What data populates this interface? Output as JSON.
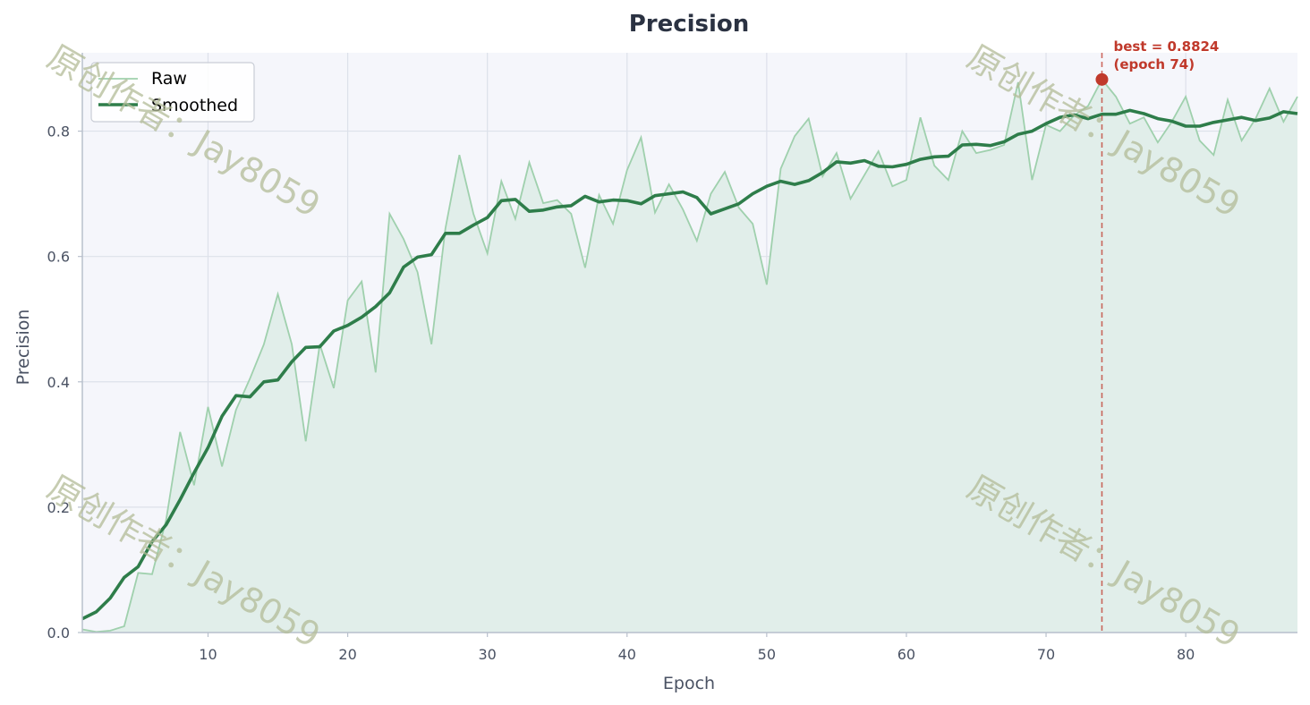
{
  "chart_data": {
    "type": "line",
    "title": "Precision",
    "xlabel": "Epoch",
    "ylabel": "Precision",
    "xlim": [
      1,
      88
    ],
    "ylim": [
      0,
      0.925
    ],
    "xticks": [
      10,
      20,
      30,
      40,
      50,
      60,
      70,
      80
    ],
    "yticks": [
      0.0,
      0.2,
      0.4,
      0.6,
      0.8
    ],
    "grid": true,
    "legend": "top-left",
    "x": [
      1,
      2,
      3,
      4,
      5,
      6,
      7,
      8,
      9,
      10,
      11,
      12,
      13,
      14,
      15,
      16,
      17,
      18,
      19,
      20,
      21,
      22,
      23,
      24,
      25,
      26,
      27,
      28,
      29,
      30,
      31,
      32,
      33,
      34,
      35,
      36,
      37,
      38,
      39,
      40,
      41,
      42,
      43,
      44,
      45,
      46,
      47,
      48,
      49,
      50,
      51,
      52,
      53,
      54,
      55,
      56,
      57,
      58,
      59,
      60,
      61,
      62,
      63,
      64,
      65,
      66,
      67,
      68,
      69,
      70,
      71,
      72,
      73,
      74,
      75,
      76,
      77,
      78,
      79,
      80,
      81,
      82,
      83,
      84,
      85,
      86,
      87,
      88
    ],
    "series": [
      {
        "name": "Raw",
        "values": [
          0.005,
          0.001,
          0.003,
          0.01,
          0.095,
          0.093,
          0.18,
          0.32,
          0.235,
          0.36,
          0.265,
          0.355,
          0.405,
          0.46,
          0.54,
          0.46,
          0.305,
          0.46,
          0.39,
          0.53,
          0.56,
          0.415,
          0.668,
          0.628,
          0.575,
          0.46,
          0.645,
          0.762,
          0.668,
          0.605,
          0.72,
          0.66,
          0.75,
          0.685,
          0.69,
          0.668,
          0.582,
          0.698,
          0.652,
          0.738,
          0.79,
          0.67,
          0.715,
          0.675,
          0.625,
          0.7,
          0.735,
          0.678,
          0.652,
          0.555,
          0.74,
          0.792,
          0.82,
          0.728,
          0.765,
          0.692,
          0.73,
          0.768,
          0.712,
          0.722,
          0.822,
          0.745,
          0.722,
          0.8,
          0.765,
          0.77,
          0.778,
          0.878,
          0.722,
          0.81,
          0.8,
          0.825,
          0.84,
          0.8824,
          0.855,
          0.812,
          0.822,
          0.782,
          0.815,
          0.855,
          0.785,
          0.762,
          0.85,
          0.785,
          0.82,
          0.868,
          0.815,
          0.855
        ],
        "color": "#9fd0ad"
      },
      {
        "name": "Smoothed",
        "values": [
          0.022,
          0.033,
          0.055,
          0.088,
          0.105,
          0.145,
          0.172,
          0.212,
          0.255,
          0.295,
          0.345,
          0.378,
          0.376,
          0.4,
          0.403,
          0.432,
          0.455,
          0.456,
          0.481,
          0.49,
          0.503,
          0.52,
          0.542,
          0.583,
          0.599,
          0.603,
          0.637,
          0.637,
          0.65,
          0.662,
          0.689,
          0.691,
          0.672,
          0.674,
          0.679,
          0.681,
          0.696,
          0.687,
          0.69,
          0.689,
          0.684,
          0.697,
          0.7,
          0.703,
          0.694,
          0.668,
          0.676,
          0.684,
          0.7,
          0.712,
          0.72,
          0.715,
          0.721,
          0.734,
          0.751,
          0.749,
          0.753,
          0.744,
          0.743,
          0.747,
          0.755,
          0.759,
          0.76,
          0.778,
          0.779,
          0.777,
          0.783,
          0.795,
          0.8,
          0.812,
          0.822,
          0.826,
          0.82,
          0.827,
          0.827,
          0.833,
          0.828,
          0.82,
          0.816,
          0.808,
          0.808,
          0.814,
          0.818,
          0.822,
          0.817,
          0.821,
          0.831,
          0.828
        ],
        "color": "#2e7d4a"
      }
    ],
    "best": {
      "x": 74,
      "y": 0.8824,
      "label_line1": "best = 0.8824",
      "label_line2": "(epoch 74)",
      "color": "#c0392b"
    },
    "fill_color": "#e1eeea",
    "plot_bg": "#f5f6fb"
  },
  "watermark": "原创作者：Jay8059"
}
